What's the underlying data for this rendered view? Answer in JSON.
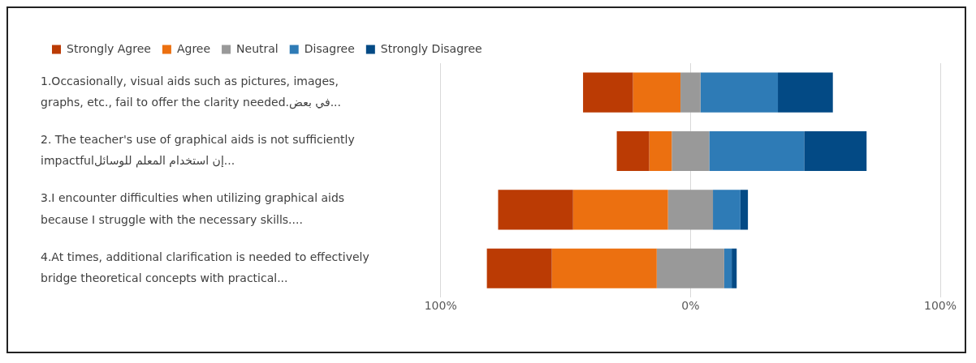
{
  "chart_data": {
    "type": "bar",
    "orientation": "horizontal",
    "categories": [
      "1.Occasionally, visual aids such as pictures, images, graphs, etc., fail to offer the clarity needed.في بعض...",
      "2. The teacher's use of graphical aids is not sufficiently impactfulإن استخدام المعلم للوسائل...",
      "3.I encounter difficulties when utilizing graphical aids because I struggle with the necessary skills....",
      "4.At times, additional clarification is needed to effectively bridge theoretical concepts with practical..."
    ],
    "series": [
      {
        "name": "Strongly Agree",
        "color": "#bb3b04",
        "values": [
          20,
          13,
          30,
          26
        ],
        "base": [
          -43,
          -29.5,
          -77,
          -81.5
        ]
      },
      {
        "name": "Agree",
        "color": "#ec7010",
        "values": [
          19,
          9,
          38,
          42
        ],
        "base": [
          -23,
          -16.5,
          -47,
          -55.5
        ]
      },
      {
        "name": "Neutral",
        "color": "#999999",
        "values": [
          8,
          15,
          18,
          27
        ],
        "base": [
          -4,
          -7.5,
          -9,
          -13.5
        ]
      },
      {
        "name": "Disagree",
        "color": "#2e7bb6",
        "values": [
          31,
          38,
          11,
          3
        ],
        "base": [
          4,
          7.5,
          9,
          13.5
        ]
      },
      {
        "name": "Strongly Disagree",
        "color": "#034a85",
        "values": [
          22,
          25,
          3,
          2
        ],
        "base": [
          35,
          45.5,
          20,
          16.5
        ]
      }
    ],
    "xlim": [
      -100,
      100
    ],
    "xticks": [
      {
        "value": -100,
        "label": "100%"
      },
      {
        "value": 0,
        "label": "0%"
      },
      {
        "value": 100,
        "label": "100%"
      }
    ],
    "grid": "x",
    "legend": "top left"
  }
}
